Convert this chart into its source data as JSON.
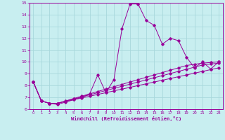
{
  "xlabel": "Windchill (Refroidissement éolien,°C)",
  "bg_color": "#c8eef0",
  "grid_color": "#a8d8dc",
  "line_color": "#990099",
  "xlim": [
    -0.5,
    23.5
  ],
  "ylim": [
    6,
    15
  ],
  "xticks": [
    0,
    1,
    2,
    3,
    4,
    5,
    6,
    7,
    8,
    9,
    10,
    11,
    12,
    13,
    14,
    15,
    16,
    17,
    18,
    19,
    20,
    21,
    22,
    23
  ],
  "yticks": [
    6,
    7,
    8,
    9,
    10,
    11,
    12,
    13,
    14,
    15
  ],
  "line1_x": [
    0,
    1,
    2,
    3,
    4,
    5,
    6,
    7,
    8,
    9,
    10,
    11,
    12,
    13,
    14,
    15,
    16,
    17,
    18,
    19,
    20,
    21,
    22,
    23
  ],
  "line1_y": [
    8.3,
    6.7,
    6.5,
    6.4,
    6.6,
    6.8,
    7.0,
    7.3,
    8.9,
    7.4,
    8.5,
    12.8,
    14.9,
    14.9,
    13.5,
    13.1,
    11.5,
    12.0,
    11.8,
    10.4,
    9.5,
    10.0,
    9.4,
    10.0
  ],
  "line2_x": [
    0,
    1,
    2,
    3,
    4,
    5,
    6,
    7,
    8,
    9,
    10,
    11,
    12,
    13,
    14,
    15,
    16,
    17,
    18,
    19,
    20,
    21,
    22,
    23
  ],
  "line2_y": [
    8.3,
    6.7,
    6.5,
    6.5,
    6.65,
    6.8,
    6.95,
    7.1,
    7.25,
    7.4,
    7.55,
    7.7,
    7.85,
    8.0,
    8.15,
    8.3,
    8.45,
    8.6,
    8.75,
    8.9,
    9.05,
    9.2,
    9.35,
    9.5
  ],
  "line3_x": [
    0,
    1,
    2,
    3,
    4,
    5,
    6,
    7,
    8,
    9,
    10,
    11,
    12,
    13,
    14,
    15,
    16,
    17,
    18,
    19,
    20,
    21,
    22,
    23
  ],
  "line3_y": [
    8.3,
    6.7,
    6.5,
    6.5,
    6.68,
    6.86,
    7.04,
    7.22,
    7.4,
    7.58,
    7.76,
    7.94,
    8.12,
    8.3,
    8.48,
    8.66,
    8.84,
    9.02,
    9.2,
    9.38,
    9.56,
    9.74,
    9.82,
    9.9
  ],
  "line4_x": [
    0,
    1,
    2,
    3,
    4,
    5,
    6,
    7,
    8,
    9,
    10,
    11,
    12,
    13,
    14,
    15,
    16,
    17,
    18,
    19,
    20,
    21,
    22,
    23
  ],
  "line4_y": [
    8.3,
    6.7,
    6.5,
    6.5,
    6.7,
    6.9,
    7.1,
    7.3,
    7.5,
    7.7,
    7.9,
    8.1,
    8.3,
    8.5,
    8.7,
    8.9,
    9.1,
    9.3,
    9.5,
    9.7,
    9.8,
    9.9,
    9.95,
    10.0
  ]
}
